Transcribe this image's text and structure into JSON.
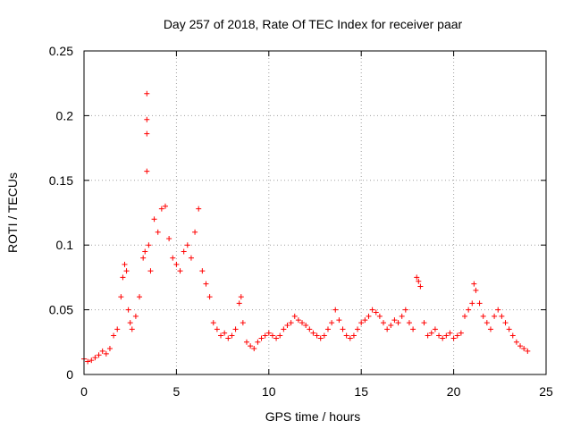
{
  "chart_data": {
    "type": "scatter",
    "title": "Day 257 of 2018, Rate Of TEC Index for receiver paar",
    "xlabel": "GPS time / hours",
    "ylabel": "ROTI / TECUs",
    "xlim": [
      0,
      25
    ],
    "ylim": [
      0,
      0.25
    ],
    "xticks": [
      0,
      5,
      10,
      15,
      20,
      25
    ],
    "xtick_labels": [
      "0",
      "5",
      "10",
      "15",
      "20",
      "25"
    ],
    "yticks": [
      0,
      0.05,
      0.1,
      0.15,
      0.2,
      0.25
    ],
    "ytick_labels": [
      "0",
      "0.05",
      "0.1",
      "0.15",
      "0.2",
      "0.25"
    ],
    "grid": true,
    "marker": "+",
    "series": [
      {
        "name": "ROTI",
        "color": "#ff0000",
        "x": [
          0.0,
          0.2,
          0.4,
          0.6,
          0.8,
          1.0,
          1.2,
          1.4,
          1.6,
          1.8,
          2.0,
          2.1,
          2.2,
          2.3,
          2.4,
          2.5,
          2.6,
          2.8,
          3.0,
          3.2,
          3.3,
          3.4,
          3.4,
          3.4,
          3.4,
          3.5,
          3.6,
          3.8,
          4.0,
          4.2,
          4.4,
          4.6,
          4.8,
          5.0,
          5.2,
          5.4,
          5.6,
          5.8,
          6.0,
          6.2,
          6.4,
          6.6,
          6.8,
          7.0,
          7.2,
          7.4,
          7.6,
          7.8,
          8.0,
          8.2,
          8.4,
          8.5,
          8.6,
          8.8,
          9.0,
          9.2,
          9.4,
          9.6,
          9.8,
          10.0,
          10.2,
          10.4,
          10.6,
          10.8,
          11.0,
          11.2,
          11.4,
          11.6,
          11.8,
          12.0,
          12.2,
          12.4,
          12.6,
          12.8,
          13.0,
          13.2,
          13.4,
          13.6,
          13.8,
          14.0,
          14.2,
          14.4,
          14.6,
          14.8,
          15.0,
          15.2,
          15.4,
          15.6,
          15.8,
          16.0,
          16.2,
          16.4,
          16.6,
          16.8,
          17.0,
          17.2,
          17.4,
          17.6,
          17.8,
          18.0,
          18.1,
          18.2,
          18.4,
          18.6,
          18.8,
          19.0,
          19.2,
          19.4,
          19.6,
          19.8,
          20.0,
          20.2,
          20.4,
          20.6,
          20.8,
          21.0,
          21.1,
          21.2,
          21.4,
          21.6,
          21.8,
          22.0,
          22.2,
          22.4,
          22.6,
          22.8,
          23.0,
          23.2,
          23.4,
          23.6,
          23.8,
          24.0
        ],
        "y": [
          0.012,
          0.01,
          0.011,
          0.013,
          0.015,
          0.018,
          0.016,
          0.02,
          0.03,
          0.035,
          0.06,
          0.075,
          0.085,
          0.08,
          0.05,
          0.04,
          0.035,
          0.045,
          0.06,
          0.09,
          0.095,
          0.217,
          0.197,
          0.186,
          0.157,
          0.1,
          0.08,
          0.12,
          0.11,
          0.128,
          0.13,
          0.105,
          0.09,
          0.085,
          0.08,
          0.095,
          0.1,
          0.09,
          0.11,
          0.128,
          0.08,
          0.07,
          0.06,
          0.04,
          0.035,
          0.03,
          0.032,
          0.028,
          0.03,
          0.035,
          0.055,
          0.06,
          0.04,
          0.025,
          0.022,
          0.02,
          0.025,
          0.028,
          0.03,
          0.032,
          0.03,
          0.028,
          0.03,
          0.035,
          0.038,
          0.04,
          0.045,
          0.042,
          0.04,
          0.038,
          0.035,
          0.032,
          0.03,
          0.028,
          0.03,
          0.035,
          0.04,
          0.05,
          0.042,
          0.035,
          0.03,
          0.028,
          0.03,
          0.035,
          0.04,
          0.042,
          0.045,
          0.05,
          0.048,
          0.045,
          0.04,
          0.035,
          0.038,
          0.042,
          0.04,
          0.045,
          0.05,
          0.04,
          0.035,
          0.075,
          0.072,
          0.068,
          0.04,
          0.03,
          0.032,
          0.035,
          0.03,
          0.028,
          0.03,
          0.032,
          0.028,
          0.03,
          0.032,
          0.045,
          0.05,
          0.055,
          0.07,
          0.065,
          0.055,
          0.045,
          0.04,
          0.035,
          0.045,
          0.05,
          0.045,
          0.04,
          0.035,
          0.03,
          0.025,
          0.022,
          0.02,
          0.018
        ]
      }
    ]
  }
}
